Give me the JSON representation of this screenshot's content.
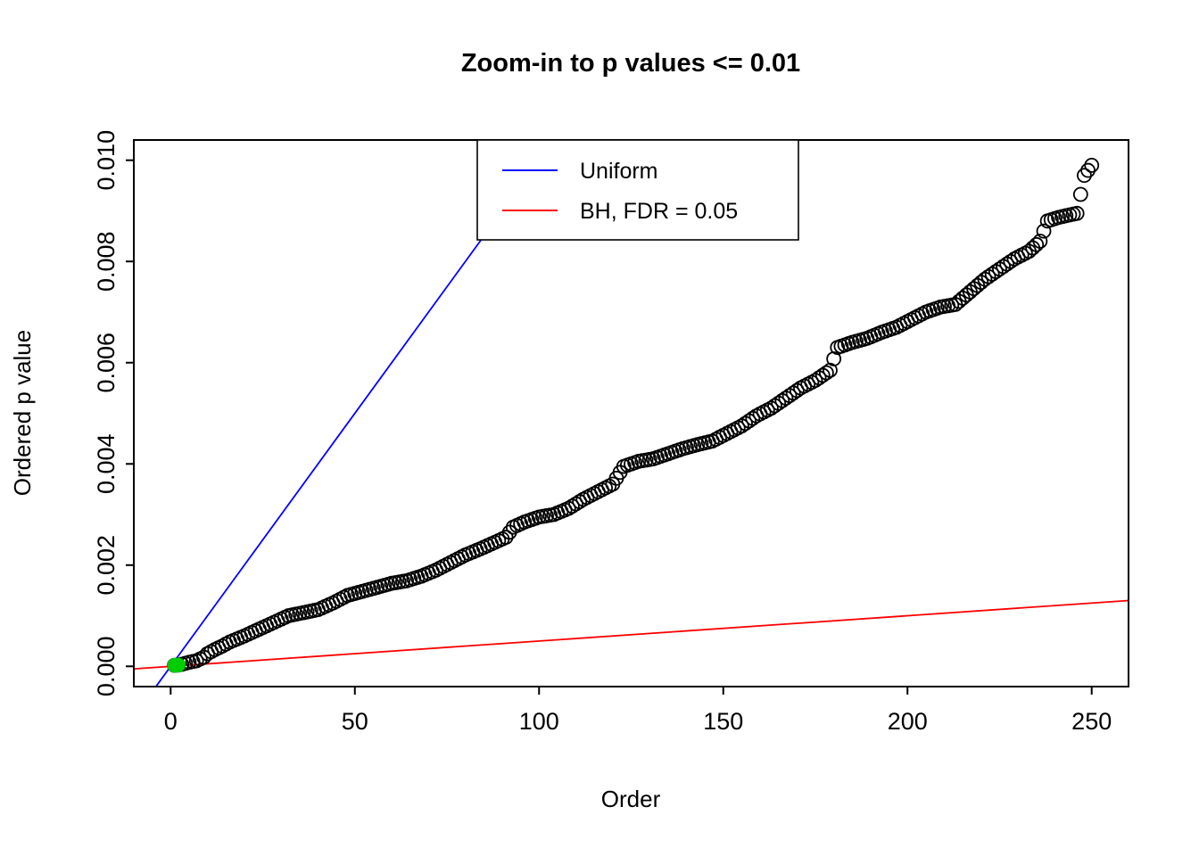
{
  "chart_data": {
    "type": "scatter",
    "title": "Zoom-in to p values <= 0.01",
    "xlabel": "Order",
    "ylabel": "Ordered p value",
    "xlim": [
      0,
      250
    ],
    "ylim": [
      0,
      0.01
    ],
    "usr": [
      -10,
      260,
      -0.0004,
      0.0104
    ],
    "grid": false,
    "x_ticks": [
      0,
      50,
      100,
      150,
      200,
      250
    ],
    "x_tick_labels": [
      "0",
      "50",
      "100",
      "150",
      "200",
      "250"
    ],
    "y_ticks": [
      0,
      0.002,
      0.004,
      0.006,
      0.008,
      0.01
    ],
    "y_tick_labels": [
      "0.000",
      "0.002",
      "0.004",
      "0.006",
      "0.008",
      "0.010"
    ],
    "legend": {
      "position": "top-center",
      "entries": [
        {
          "label": "Uniform",
          "color": "#0000FF"
        },
        {
          "label": "BH, FDR = 0.05",
          "color": "#FF0000"
        }
      ]
    },
    "lines": [
      {
        "name": "Uniform",
        "color": "#0000FF",
        "slope": 0.0001,
        "intercept": 0,
        "equation": "p = i / 10000"
      },
      {
        "name": "BH, FDR = 0.05",
        "color": "#FF0000",
        "slope": 5e-06,
        "intercept": 0,
        "equation": "p = 0.05 * i / 10000"
      }
    ],
    "points": {
      "n": 250,
      "marker": "open-circle",
      "color": "#000000",
      "description": "Ordered p-values <= 0.01 for orders 1..250; values read from plot and linearly interpolated between anchors",
      "anchors": [
        [
          1,
          2e-05
        ],
        [
          2,
          2.5e-05
        ],
        [
          3,
          4e-05
        ],
        [
          5,
          8e-05
        ],
        [
          7,
          0.00011
        ],
        [
          9,
          0.00018
        ],
        [
          10,
          0.00025
        ],
        [
          12,
          0.00033
        ],
        [
          14,
          0.0004
        ],
        [
          16,
          0.00048
        ],
        [
          18,
          0.00054
        ],
        [
          20,
          0.0006
        ],
        [
          23,
          0.0007
        ],
        [
          26,
          0.0008
        ],
        [
          29,
          0.0009
        ],
        [
          32,
          0.001
        ],
        [
          36,
          0.00106
        ],
        [
          40,
          0.00112
        ],
        [
          44,
          0.00125
        ],
        [
          48,
          0.0014
        ],
        [
          52,
          0.00148
        ],
        [
          56,
          0.00156
        ],
        [
          60,
          0.00164
        ],
        [
          64,
          0.00169
        ],
        [
          68,
          0.00178
        ],
        [
          72,
          0.0019
        ],
        [
          76,
          0.00205
        ],
        [
          80,
          0.0022
        ],
        [
          84,
          0.00232
        ],
        [
          88,
          0.00245
        ],
        [
          91,
          0.00255
        ],
        [
          93,
          0.00275
        ],
        [
          96,
          0.00285
        ],
        [
          100,
          0.00295
        ],
        [
          104,
          0.003
        ],
        [
          108,
          0.00312
        ],
        [
          112,
          0.0033
        ],
        [
          116,
          0.00345
        ],
        [
          120,
          0.0036
        ],
        [
          123,
          0.00395
        ],
        [
          127,
          0.00405
        ],
        [
          131,
          0.0041
        ],
        [
          135,
          0.0042
        ],
        [
          139,
          0.0043
        ],
        [
          143,
          0.00438
        ],
        [
          147,
          0.00445
        ],
        [
          151,
          0.0046
        ],
        [
          155,
          0.00475
        ],
        [
          159,
          0.00495
        ],
        [
          163,
          0.0051
        ],
        [
          167,
          0.0053
        ],
        [
          171,
          0.0055
        ],
        [
          175,
          0.00565
        ],
        [
          179,
          0.00585
        ],
        [
          181,
          0.0063
        ],
        [
          185,
          0.0064
        ],
        [
          189,
          0.00648
        ],
        [
          193,
          0.0066
        ],
        [
          197,
          0.0067
        ],
        [
          201,
          0.00685
        ],
        [
          205,
          0.007
        ],
        [
          209,
          0.0071
        ],
        [
          213,
          0.00715
        ],
        [
          217,
          0.0074
        ],
        [
          221,
          0.00765
        ],
        [
          225,
          0.00785
        ],
        [
          229,
          0.00805
        ],
        [
          233,
          0.0082
        ],
        [
          236,
          0.0084
        ],
        [
          238,
          0.0088
        ],
        [
          241,
          0.00887
        ],
        [
          244,
          0.00892
        ],
        [
          246,
          0.00895
        ],
        [
          248,
          0.0097
        ],
        [
          250,
          0.0099
        ]
      ],
      "significant_green": {
        "color": "#00CD00",
        "marker": "filled-circle",
        "points": [
          [
            1,
            2e-05
          ],
          [
            2,
            2.5e-05
          ]
        ]
      }
    }
  }
}
